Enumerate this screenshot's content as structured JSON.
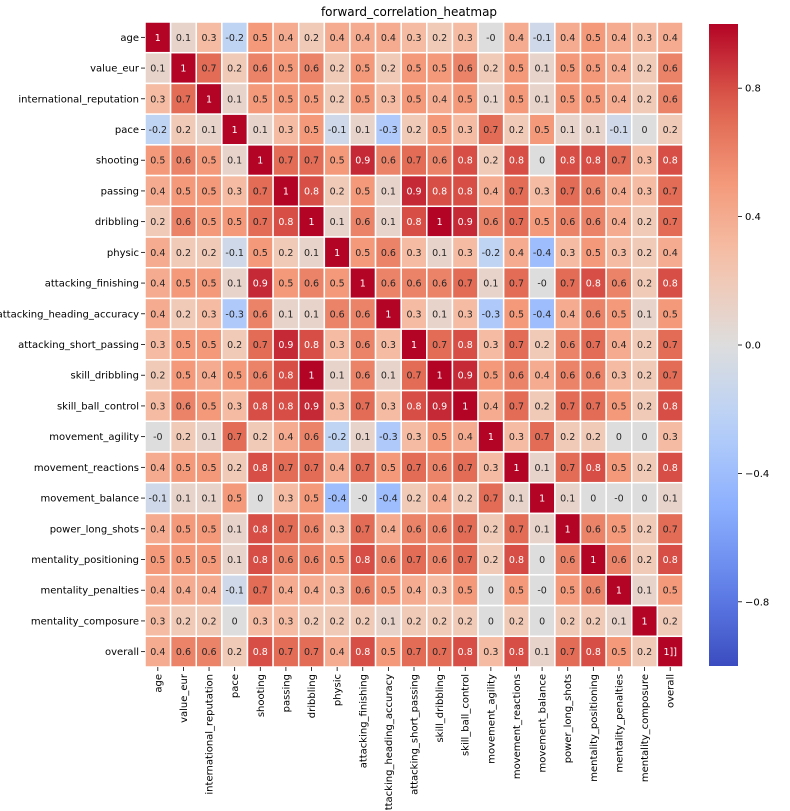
{
  "chart_data": {
    "type": "heatmap",
    "title": "forward_correlation_heatmap",
    "labels": [
      "age",
      "value_eur",
      "international_reputation",
      "pace",
      "shooting",
      "passing",
      "dribbling",
      "physic",
      "attacking_finishing",
      "attacking_heading_accuracy",
      "attacking_short_passing",
      "skill_dribbling",
      "skill_ball_control",
      "movement_agility",
      "movement_reactions",
      "movement_balance",
      "power_long_shots",
      "mentality_positioning",
      "mentality_penalties",
      "mentality_composure",
      "overall"
    ],
    "values": [
      [
        1,
        0.1,
        0.3,
        -0.2,
        0.5,
        0.4,
        0.2,
        0.4,
        0.4,
        0.4,
        0.3,
        0.2,
        0.3,
        0,
        0.4,
        -0.1,
        0.4,
        0.5,
        0.4,
        0.3,
        0.4
      ],
      [
        0.1,
        1,
        0.7,
        0.2,
        0.6,
        0.5,
        0.6,
        0.2,
        0.5,
        0.2,
        0.5,
        0.5,
        0.6,
        0.2,
        0.5,
        0.1,
        0.5,
        0.5,
        0.4,
        0.2,
        0.6
      ],
      [
        0.3,
        0.7,
        1,
        0.1,
        0.5,
        0.5,
        0.5,
        0.2,
        0.5,
        0.3,
        0.5,
        0.4,
        0.5,
        0.1,
        0.5,
        0.1,
        0.5,
        0.5,
        0.4,
        0.2,
        0.6
      ],
      [
        -0.2,
        0.2,
        0.1,
        1,
        0.1,
        0.3,
        0.5,
        -0.1,
        0.1,
        -0.3,
        0.2,
        0.5,
        0.3,
        0.7,
        0.2,
        0.5,
        0.1,
        0.1,
        -0.1,
        0,
        0.2
      ],
      [
        0.5,
        0.6,
        0.5,
        0.1,
        1,
        0.7,
        0.7,
        0.5,
        0.9,
        0.6,
        0.7,
        0.6,
        0.8,
        0.2,
        0.8,
        0,
        0.8,
        0.8,
        0.7,
        0.3,
        0.8
      ],
      [
        0.4,
        0.5,
        0.5,
        0.3,
        0.7,
        1,
        0.8,
        0.2,
        0.5,
        0.1,
        0.9,
        0.8,
        0.8,
        0.4,
        0.7,
        0.3,
        0.7,
        0.6,
        0.4,
        0.3,
        0.7
      ],
      [
        0.2,
        0.6,
        0.5,
        0.5,
        0.7,
        0.8,
        1,
        0.1,
        0.6,
        0.1,
        0.8,
        1,
        0.9,
        0.6,
        0.7,
        0.5,
        0.6,
        0.6,
        0.4,
        0.2,
        0.7
      ],
      [
        0.4,
        0.2,
        0.2,
        -0.1,
        0.5,
        0.2,
        0.1,
        1,
        0.5,
        0.6,
        0.3,
        0.1,
        0.3,
        -0.2,
        0.4,
        -0.4,
        0.3,
        0.5,
        0.3,
        0.2,
        0.4
      ],
      [
        0.4,
        0.5,
        0.5,
        0.1,
        0.9,
        0.5,
        0.6,
        0.5,
        1,
        0.6,
        0.6,
        0.6,
        0.7,
        0.1,
        0.7,
        0,
        0.7,
        0.8,
        0.6,
        0.2,
        0.8
      ],
      [
        0.4,
        0.2,
        0.3,
        -0.3,
        0.6,
        0.1,
        0.1,
        0.6,
        0.6,
        1,
        0.3,
        0.1,
        0.3,
        -0.3,
        0.5,
        -0.4,
        0.4,
        0.6,
        0.5,
        0.1,
        0.5
      ],
      [
        0.3,
        0.5,
        0.5,
        0.2,
        0.7,
        0.9,
        0.8,
        0.3,
        0.6,
        0.3,
        1,
        0.7,
        0.8,
        0.3,
        0.7,
        0.2,
        0.6,
        0.7,
        0.4,
        0.2,
        0.7
      ],
      [
        0.2,
        0.5,
        0.4,
        0.5,
        0.6,
        0.8,
        1,
        0.1,
        0.6,
        0.1,
        0.7,
        1,
        0.9,
        0.5,
        0.6,
        0.4,
        0.6,
        0.6,
        0.3,
        0.2,
        0.7
      ],
      [
        0.3,
        0.6,
        0.5,
        0.3,
        0.8,
        0.8,
        0.9,
        0.3,
        0.7,
        0.3,
        0.8,
        0.9,
        1,
        0.4,
        0.7,
        0.2,
        0.7,
        0.7,
        0.5,
        0.2,
        0.8
      ],
      [
        0,
        0.2,
        0.1,
        0.7,
        0.2,
        0.4,
        0.6,
        -0.2,
        0.1,
        -0.3,
        0.3,
        0.5,
        0.4,
        1,
        0.3,
        0.7,
        0.2,
        0.2,
        0,
        0,
        0.3
      ],
      [
        0.4,
        0.5,
        0.5,
        0.2,
        0.8,
        0.7,
        0.7,
        0.4,
        0.7,
        0.5,
        0.7,
        0.6,
        0.7,
        0.3,
        1,
        0.1,
        0.7,
        0.8,
        0.5,
        0.2,
        0.8
      ],
      [
        -0.1,
        0.1,
        0.1,
        0.5,
        0,
        0.3,
        0.5,
        -0.4,
        0,
        -0.4,
        0.2,
        0.4,
        0.2,
        0.7,
        0.1,
        1,
        0.1,
        0,
        0,
        0,
        0.1
      ],
      [
        0.4,
        0.5,
        0.5,
        0.1,
        0.8,
        0.7,
        0.6,
        0.3,
        0.7,
        0.4,
        0.6,
        0.6,
        0.7,
        0.2,
        0.7,
        0.1,
        1,
        0.6,
        0.5,
        0.2,
        0.7
      ],
      [
        0.5,
        0.5,
        0.5,
        0.1,
        0.8,
        0.6,
        0.6,
        0.5,
        0.8,
        0.6,
        0.7,
        0.6,
        0.7,
        0.2,
        0.8,
        0,
        0.6,
        1,
        0.6,
        0.2,
        0.8
      ],
      [
        0.4,
        0.4,
        0.4,
        -0.1,
        0.7,
        0.4,
        0.4,
        0.3,
        0.6,
        0.5,
        0.4,
        0.3,
        0.5,
        0,
        0.5,
        0,
        0.5,
        0.6,
        1,
        0.1,
        0.5
      ],
      [
        0.3,
        0.2,
        0.2,
        0,
        0.3,
        0.3,
        0.2,
        0.2,
        0.2,
        0.1,
        0.2,
        0.2,
        0.2,
        0,
        0.2,
        0,
        0.2,
        0.2,
        0.1,
        1,
        0.2
      ],
      [
        0.4,
        0.6,
        0.6,
        0.2,
        0.8,
        0.7,
        0.7,
        0.4,
        0.8,
        0.5,
        0.7,
        0.7,
        0.8,
        0.3,
        0.8,
        0.1,
        0.7,
        0.8,
        0.5,
        0.2,
        1
      ]
    ],
    "colormap": "coolwarm",
    "vmin": -1,
    "vmax": 1,
    "colorbar_ticks": [
      0.8,
      0.4,
      0.0,
      -0.4,
      -0.8
    ],
    "colorbar_tick_labels": [
      "0.8",
      "0.4",
      "0.0",
      "−0.4",
      "−0.8"
    ],
    "xlabel": "",
    "ylabel": ""
  }
}
